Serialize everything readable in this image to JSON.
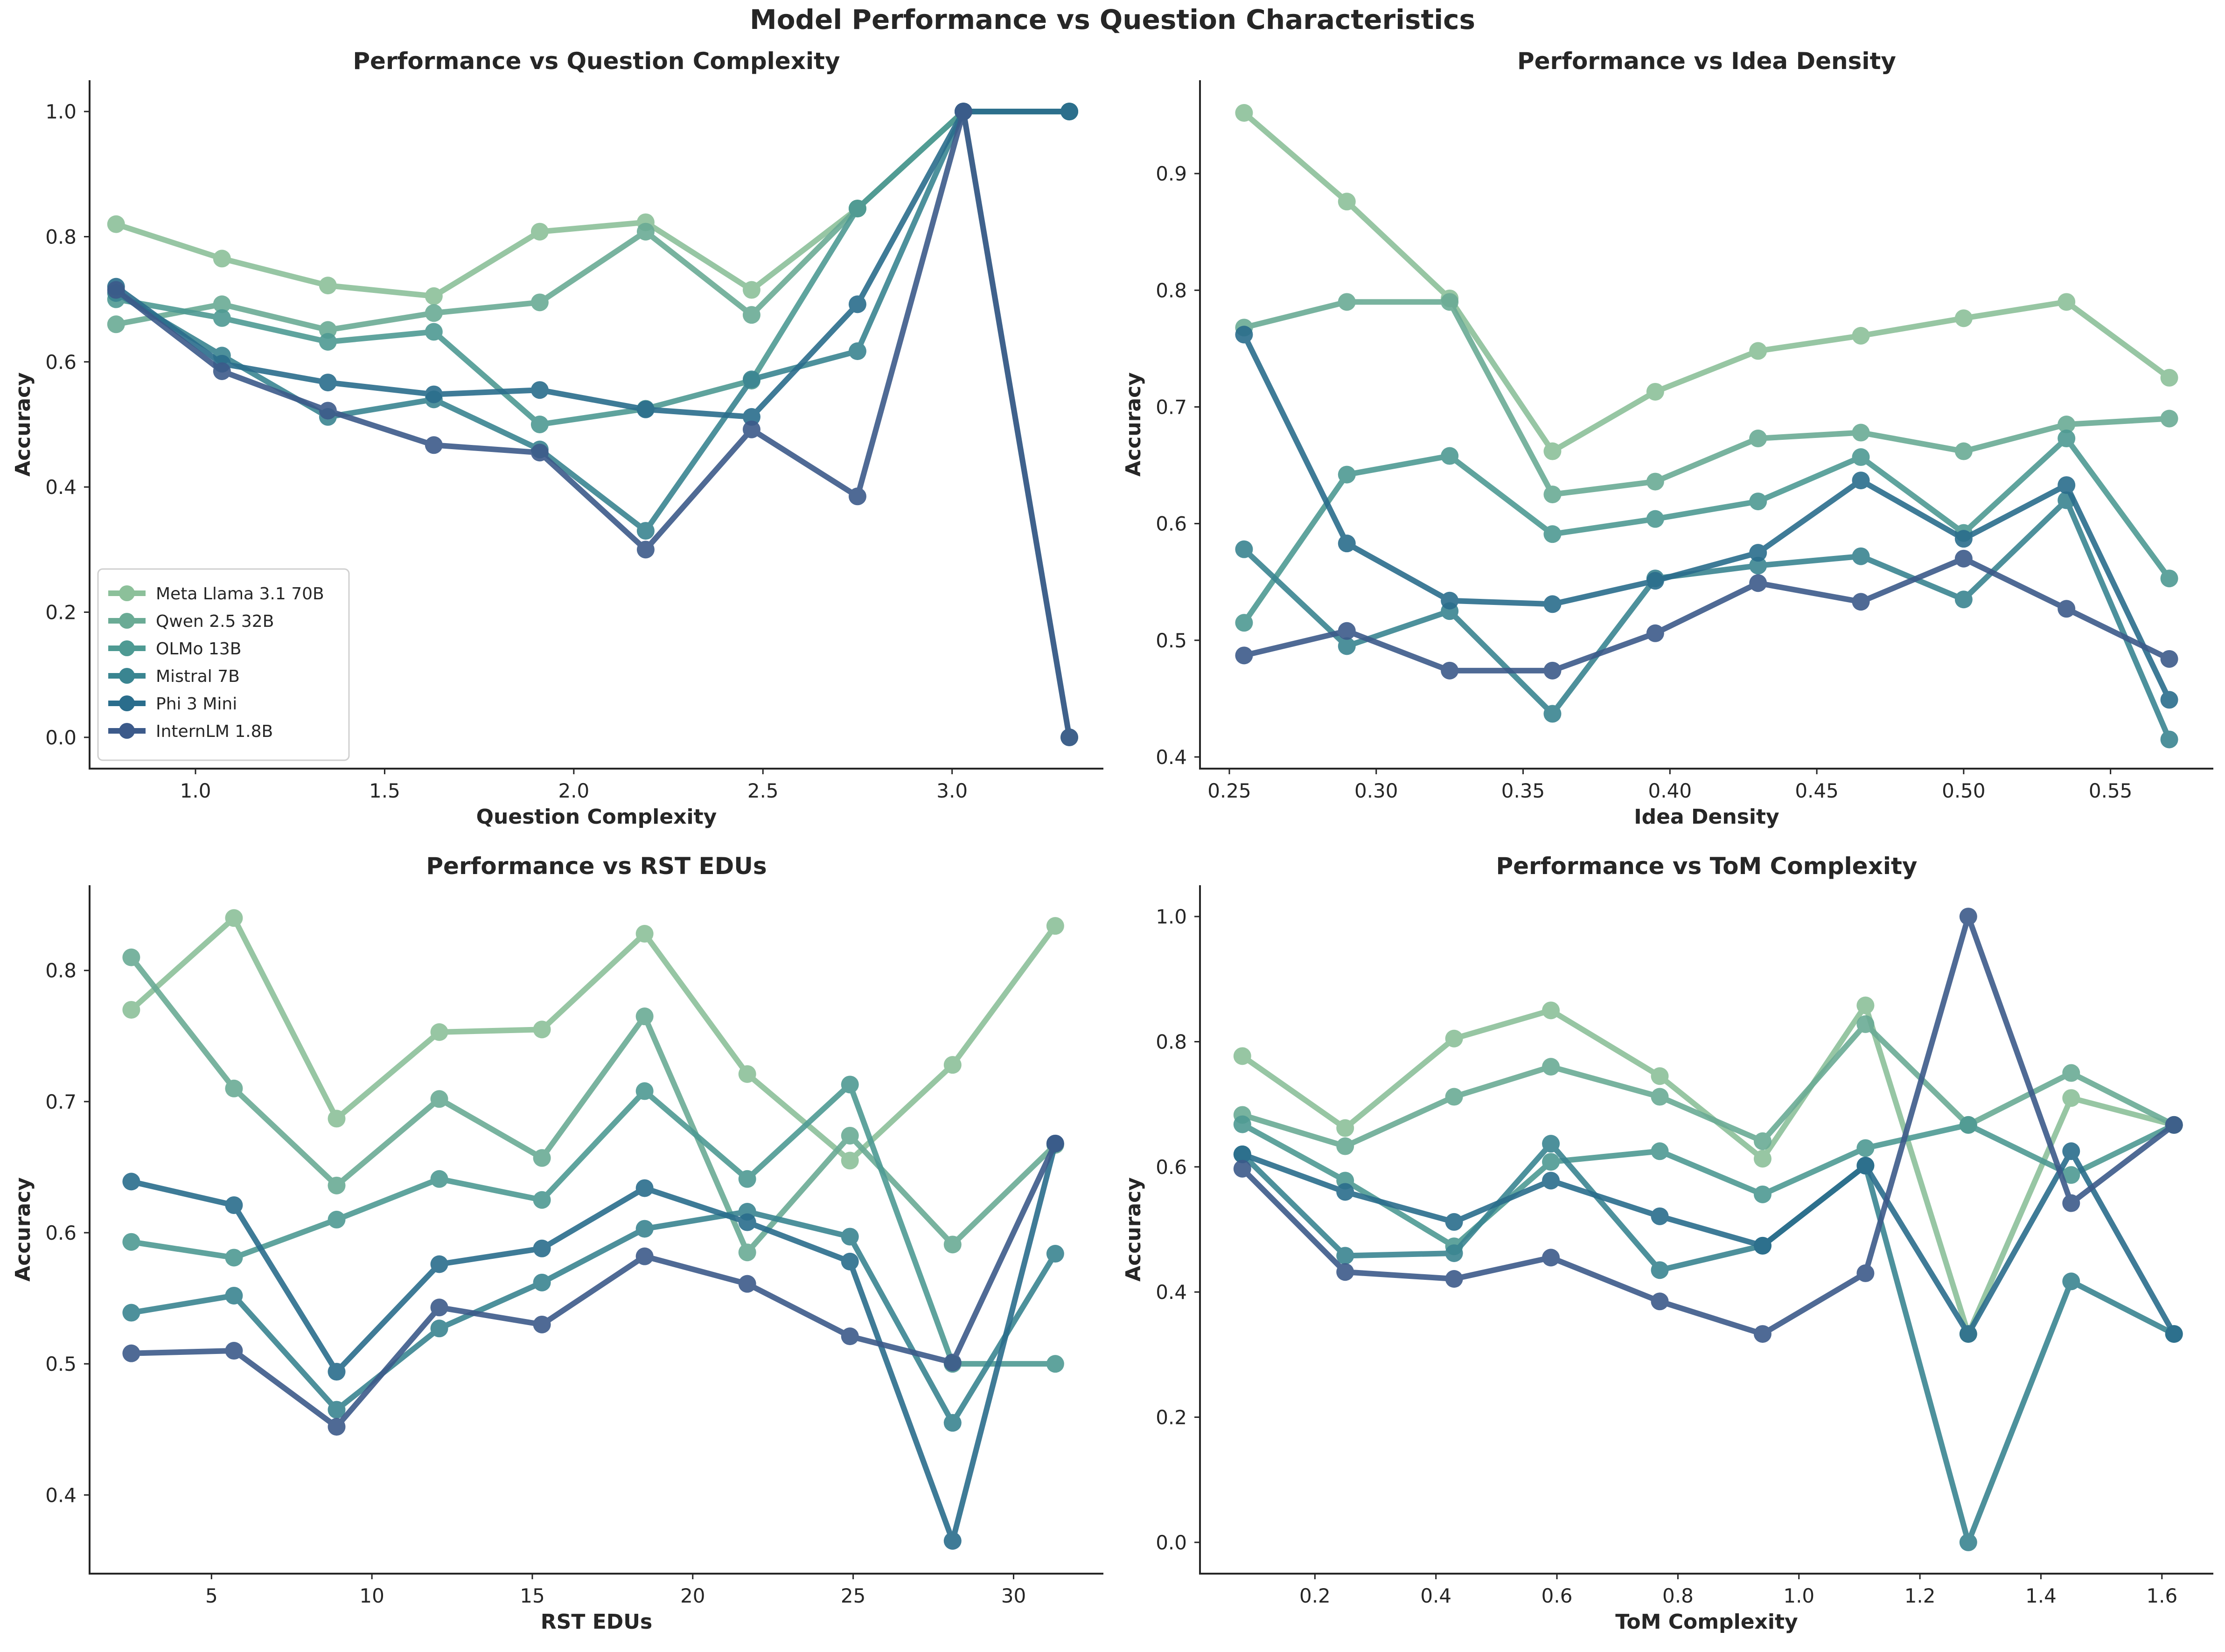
{
  "figure": {
    "title": "Model Performance vs Question Characteristics"
  },
  "colors": [
    "#8cc09a",
    "#6aab95",
    "#4e9a93",
    "#3a8591",
    "#2a6d8c",
    "#3c5a8a"
  ],
  "chart_data": [
    {
      "type": "line",
      "title": "Performance vs Question Complexity",
      "xlabel": "Question Complexity",
      "ylabel": "Accuracy",
      "xlim": [
        0.72,
        3.4
      ],
      "ylim": [
        -0.05,
        1.05
      ],
      "xticks": [
        1.0,
        1.5,
        2.0,
        2.5,
        3.0
      ],
      "yticks": [
        0.0,
        0.2,
        0.4,
        0.6,
        0.8,
        1.0
      ],
      "legend": "lower-left",
      "x": [
        0.79,
        1.07,
        1.35,
        1.63,
        1.91,
        2.19,
        2.47,
        2.75,
        3.03,
        3.31
      ],
      "series": [
        {
          "name": "Meta Llama 3.1 70B",
          "values": [
            0.82,
            0.765,
            0.722,
            0.705,
            0.808,
            0.823,
            0.715,
            0.845,
            1.0,
            1.0
          ]
        },
        {
          "name": "Qwen 2.5 32B",
          "values": [
            0.66,
            0.692,
            0.651,
            0.678,
            0.695,
            0.808,
            0.675,
            0.845,
            1.0,
            1.0
          ]
        },
        {
          "name": "OLMo 13B",
          "values": [
            0.7,
            0.67,
            0.632,
            0.648,
            0.5,
            0.525,
            0.57,
            0.845,
            1.0,
            0.0
          ]
        },
        {
          "name": "Mistral 7B",
          "values": [
            0.71,
            0.61,
            0.512,
            0.54,
            0.46,
            0.33,
            0.572,
            0.617,
            1.0,
            1.0
          ]
        },
        {
          "name": "Phi 3 Mini",
          "values": [
            0.72,
            0.597,
            0.567,
            0.548,
            0.555,
            0.524,
            0.512,
            0.692,
            1.0,
            1.0
          ]
        },
        {
          "name": "InternLM 1.8B",
          "values": [
            0.715,
            0.585,
            0.522,
            0.467,
            0.455,
            0.3,
            0.492,
            0.385,
            1.0,
            0.0
          ]
        }
      ]
    },
    {
      "type": "line",
      "title": "Performance vs Idea Density",
      "xlabel": "Idea Density",
      "ylabel": "Accuracy",
      "xlim": [
        0.24,
        0.585
      ],
      "ylim": [
        0.39,
        0.98
      ],
      "xticks": [
        0.25,
        0.3,
        0.35,
        0.4,
        0.45,
        0.5,
        0.55
      ],
      "yticks": [
        0.4,
        0.5,
        0.6,
        0.7,
        0.8,
        0.9
      ],
      "x": [
        0.255,
        0.29,
        0.325,
        0.36,
        0.395,
        0.43,
        0.465,
        0.5,
        0.535,
        0.57
      ],
      "series": [
        {
          "name": "Meta Llama 3.1 70B",
          "values": [
            0.952,
            0.876,
            0.793,
            0.662,
            0.713,
            0.748,
            0.761,
            0.776,
            0.79,
            0.725
          ]
        },
        {
          "name": "Qwen 2.5 32B",
          "values": [
            0.768,
            0.79,
            0.79,
            0.625,
            0.636,
            0.673,
            0.678,
            0.662,
            0.685,
            0.69
          ]
        },
        {
          "name": "OLMo 13B",
          "values": [
            0.515,
            0.642,
            0.658,
            0.591,
            0.604,
            0.619,
            0.657,
            0.592,
            0.673,
            0.553
          ]
        },
        {
          "name": "Mistral 7B",
          "values": [
            0.578,
            0.495,
            0.525,
            0.437,
            0.553,
            0.564,
            0.572,
            0.535,
            0.62,
            0.415
          ]
        },
        {
          "name": "Phi 3 Mini",
          "values": [
            0.762,
            0.583,
            0.534,
            0.531,
            0.551,
            0.575,
            0.637,
            0.587,
            0.633,
            0.449
          ]
        },
        {
          "name": "InternLM 1.8B",
          "values": [
            0.487,
            0.508,
            0.474,
            0.474,
            0.506,
            0.549,
            0.533,
            0.57,
            0.527,
            0.484
          ]
        }
      ]
    },
    {
      "type": "line",
      "title": "Performance vs RST EDUs",
      "xlabel": "RST EDUs",
      "ylabel": "Accuracy",
      "xlim": [
        1.2,
        32.8
      ],
      "ylim": [
        0.34,
        0.865
      ],
      "xticks": [
        5,
        10,
        15,
        20,
        25,
        30
      ],
      "yticks": [
        0.4,
        0.5,
        0.6,
        0.7,
        0.8
      ],
      "x": [
        2.5,
        5.7,
        8.9,
        12.1,
        15.3,
        18.5,
        21.7,
        24.9,
        28.1,
        31.3
      ],
      "series": [
        {
          "name": "Meta Llama 3.1 70B",
          "values": [
            0.77,
            0.84,
            0.687,
            0.753,
            0.755,
            0.828,
            0.721,
            0.655,
            0.728,
            0.834
          ]
        },
        {
          "name": "Qwen 2.5 32B",
          "values": [
            0.81,
            0.71,
            0.636,
            0.702,
            0.657,
            0.765,
            0.585,
            0.674,
            0.591,
            0.667
          ]
        },
        {
          "name": "OLMo 13B",
          "values": [
            0.593,
            0.581,
            0.61,
            0.641,
            0.625,
            0.708,
            0.641,
            0.713,
            0.5,
            0.5
          ]
        },
        {
          "name": "Mistral 7B",
          "values": [
            0.539,
            0.552,
            0.465,
            0.527,
            0.562,
            0.603,
            0.616,
            0.597,
            0.455,
            0.584
          ]
        },
        {
          "name": "Phi 3 Mini",
          "values": [
            0.639,
            0.621,
            0.494,
            0.576,
            0.588,
            0.634,
            0.608,
            0.578,
            0.365,
            0.668
          ]
        },
        {
          "name": "InternLM 1.8B",
          "values": [
            0.508,
            0.51,
            0.452,
            0.543,
            0.53,
            0.582,
            0.561,
            0.521,
            0.501,
            0.668
          ]
        }
      ]
    },
    {
      "type": "line",
      "title": "Performance vs ToM Complexity",
      "xlabel": "ToM Complexity",
      "ylabel": "Accuracy",
      "xlim": [
        0.01,
        1.685
      ],
      "ylim": [
        -0.05,
        1.05
      ],
      "xticks": [
        0.2,
        0.4,
        0.6,
        0.8,
        1.0,
        1.2,
        1.4,
        1.6
      ],
      "yticks": [
        0.0,
        0.2,
        0.4,
        0.6,
        0.8,
        1.0
      ],
      "x": [
        0.08,
        0.25,
        0.43,
        0.59,
        0.77,
        0.94,
        1.11,
        1.28,
        1.45,
        1.62
      ],
      "series": [
        {
          "name": "Meta Llama 3.1 70B",
          "values": [
            0.777,
            0.662,
            0.805,
            0.85,
            0.745,
            0.613,
            0.858,
            0.333,
            0.71,
            0.667
          ]
        },
        {
          "name": "Qwen 2.5 32B",
          "values": [
            0.683,
            0.633,
            0.712,
            0.76,
            0.712,
            0.641,
            0.828,
            0.667,
            0.75,
            0.667
          ]
        },
        {
          "name": "OLMo 13B",
          "values": [
            0.668,
            0.578,
            0.473,
            0.608,
            0.625,
            0.556,
            0.63,
            0.667,
            0.587,
            0.667
          ]
        },
        {
          "name": "Mistral 7B",
          "values": [
            0.62,
            0.458,
            0.462,
            0.637,
            0.435,
            0.474,
            0.602,
            0.0,
            0.417,
            0.333
          ]
        },
        {
          "name": "Phi 3 Mini",
          "values": [
            0.62,
            0.56,
            0.512,
            0.578,
            0.521,
            0.474,
            0.602,
            0.333,
            0.625,
            0.333
          ]
        },
        {
          "name": "InternLM 1.8B",
          "values": [
            0.597,
            0.432,
            0.421,
            0.455,
            0.385,
            0.333,
            0.43,
            1.0,
            0.542,
            0.667
          ]
        }
      ]
    }
  ]
}
